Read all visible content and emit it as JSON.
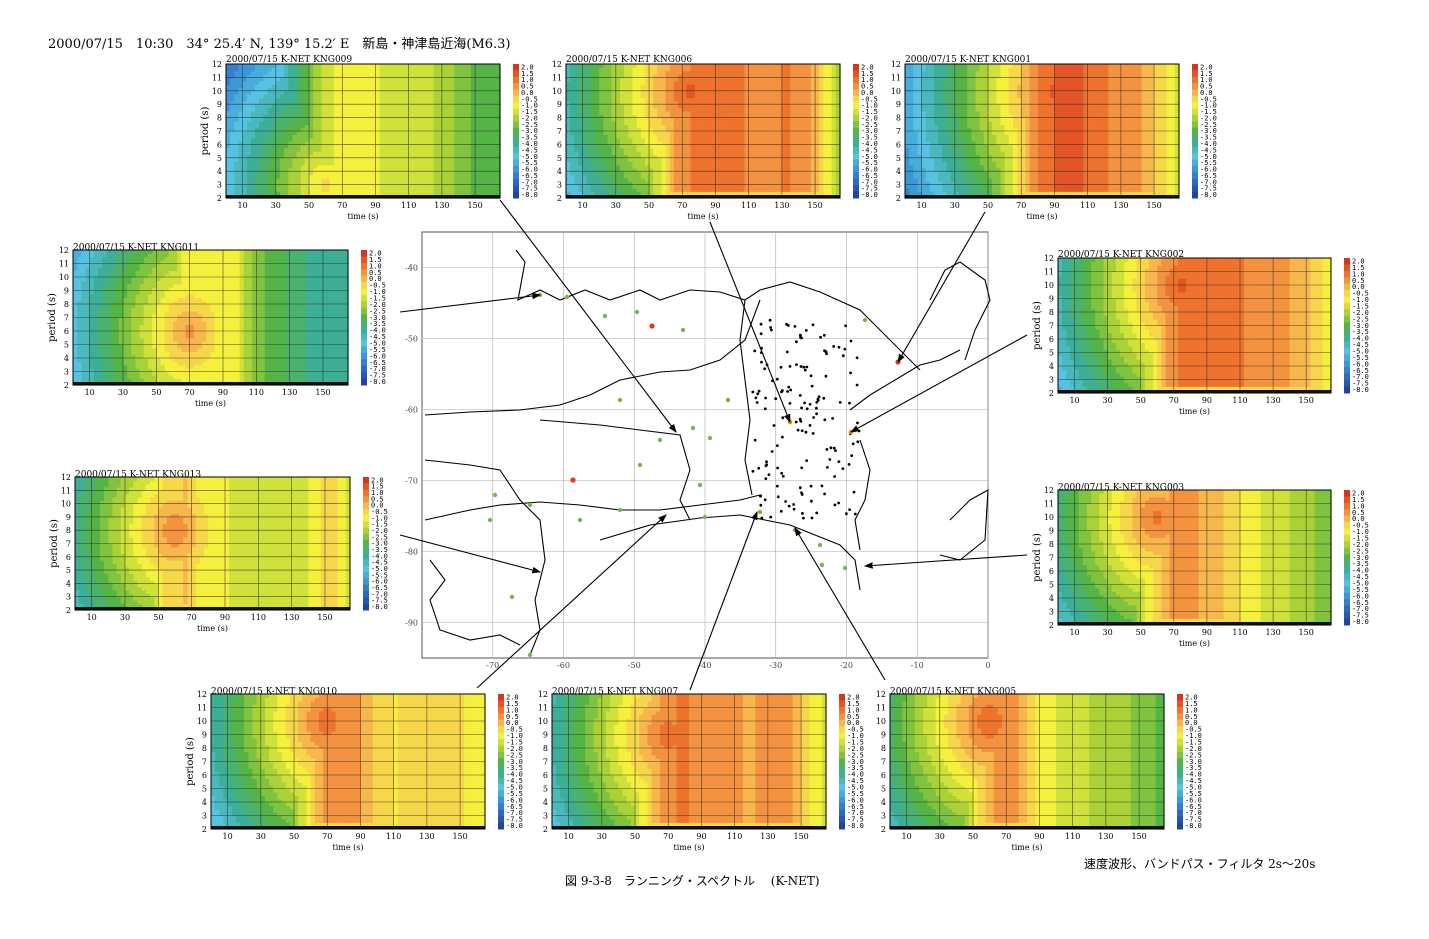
{
  "header": {
    "event": "2000/07/15　10:30　34°  25.4′ N,  139°  15.2′ E　新島・神津島近海(M6.3)"
  },
  "footer": {
    "note": "速度波形、バンドパス・フィルタ 2s～20s",
    "caption": "図 9-3-8　ランニング・スペクトル　 (K-NET)"
  },
  "colors": {
    "arrow": "#000000",
    "station_green": "#7ab648",
    "station_red": "#e03a1a",
    "station_orange": "#e89a20"
  },
  "chart_data": [
    {
      "type": "heatmap",
      "title": "2000/07/15  K-NET  KNG009",
      "xlabel": "time (s)",
      "ylabel": "period (s)",
      "xticks": [
        "10",
        "30",
        "50",
        "70",
        "90",
        "110",
        "130",
        "150"
      ],
      "yticks": [
        "2",
        "3",
        "4",
        "5",
        "6",
        "7",
        "8",
        "9",
        "10",
        "11",
        "12"
      ],
      "xlim": [
        0,
        165
      ],
      "ylim": [
        2,
        12
      ],
      "colorbar": [
        "2.0",
        "1.5",
        "1.0",
        "0.5",
        "0.0",
        "-0.5",
        "-1.0",
        "-1.5",
        "-2.0",
        "-2.5",
        "-3.0",
        "-3.5",
        "-4.0",
        "-4.5",
        "-5.0",
        "-5.5",
        "-6.0",
        "-6.5",
        "-7.0",
        "-7.5",
        "-8.0"
      ],
      "peak": {
        "time": 60,
        "period": 3,
        "level": -0.5
      },
      "profile": [
        -8,
        -7,
        -6,
        -5,
        -3.5,
        -2,
        -1.2,
        -1,
        -1.2,
        -1.3,
        -1.4,
        -1.6,
        -2,
        -2.5,
        -3,
        -3.2
      ]
    },
    {
      "type": "heatmap",
      "title": "2000/07/15  K-NET  KNG006",
      "xlabel": "time (s)",
      "ylabel": "",
      "xticks": [
        "10",
        "30",
        "50",
        "70",
        "90",
        "110",
        "130",
        "150"
      ],
      "yticks": [
        "2",
        "3",
        "4",
        "5",
        "6",
        "7",
        "8",
        "9",
        "10",
        "11",
        "12"
      ],
      "xlim": [
        0,
        165
      ],
      "ylim": [
        2,
        12
      ],
      "colorbar": [
        "2.0",
        "1.5",
        "1.0",
        "0.5",
        "0.0",
        "-0.5",
        "-1.0",
        "-1.5",
        "-2.0",
        "-2.5",
        "-3.0",
        "-3.5",
        "-4.0",
        "-4.5",
        "-5.0",
        "-5.5",
        "-6.0",
        "-6.5",
        "-7.0",
        "-7.5",
        "-8.0"
      ],
      "peak": {
        "time": 75,
        "period": 10,
        "level": 1.5
      },
      "profile": [
        -8,
        -7,
        -6,
        -5,
        -3.5,
        -1.5,
        0.3,
        0.8,
        1.0,
        0.9,
        0.7,
        0.6,
        0.8,
        0.6,
        -0.5,
        -2
      ]
    },
    {
      "type": "heatmap",
      "title": "2000/07/15  K-NET  KNG001",
      "xlabel": "time (s)",
      "ylabel": "",
      "xticks": [
        "10",
        "30",
        "50",
        "70",
        "90",
        "110",
        "130",
        "150"
      ],
      "yticks": [
        "2",
        "3",
        "4",
        "5",
        "6",
        "7",
        "8",
        "9",
        "10",
        "11",
        "12"
      ],
      "xlim": [
        0,
        165
      ],
      "ylim": [
        2,
        12
      ],
      "colorbar": [
        "2.0",
        "1.5",
        "1.0",
        "0.5",
        "0.0",
        "-0.5",
        "-1.0",
        "-1.5",
        "-2.0",
        "-2.5",
        "-3.0",
        "-3.5",
        "-4.0",
        "-4.5",
        "-5.0",
        "-5.5",
        "-6.0",
        "-6.5",
        "-7.0",
        "-7.5",
        "-8.0"
      ],
      "peak": {
        "time": 95,
        "period": 10,
        "level": 1.8
      },
      "profile": [
        -8,
        -7,
        -6,
        -5,
        -4,
        -2.5,
        -1,
        0.5,
        1.2,
        1.4,
        1.2,
        0.8,
        0.5,
        0.3,
        -0.5,
        -1.5
      ]
    },
    {
      "type": "heatmap",
      "title": "2000/07/15  K-NET  KNG011",
      "xlabel": "time (s)",
      "ylabel": "period (s)",
      "xticks": [
        "10",
        "30",
        "50",
        "70",
        "90",
        "110",
        "130",
        "150"
      ],
      "yticks": [
        "2",
        "3",
        "4",
        "5",
        "6",
        "7",
        "8",
        "9",
        "10",
        "11",
        "12"
      ],
      "xlim": [
        0,
        165
      ],
      "ylim": [
        2,
        12
      ],
      "colorbar": [
        "2.0",
        "1.5",
        "1.0",
        "0.5",
        "0.0",
        "-0.5",
        "-1.0",
        "-1.5",
        "-2.0",
        "-2.5",
        "-3.0",
        "-3.5",
        "-4.0",
        "-4.5",
        "-5.0",
        "-5.5",
        "-6.0",
        "-6.5",
        "-7.0",
        "-7.5",
        "-8.0"
      ],
      "peak": {
        "time": 70,
        "period": 6,
        "level": 0.5
      },
      "profile": [
        -8,
        -7,
        -6,
        -5,
        -4,
        -2.5,
        -1.2,
        -0.8,
        -1,
        -1.2,
        -2.5,
        -3,
        -3.5,
        -3.8,
        -4,
        -4
      ]
    },
    {
      "type": "heatmap",
      "title": "2000/07/15  K-NET  KNG002",
      "xlabel": "time (s)",
      "ylabel": "period (s)",
      "xticks": [
        "10",
        "30",
        "50",
        "70",
        "90",
        "110",
        "130",
        "150"
      ],
      "yticks": [
        "2",
        "3",
        "4",
        "5",
        "6",
        "7",
        "8",
        "9",
        "10",
        "11",
        "12"
      ],
      "xlim": [
        0,
        165
      ],
      "ylim": [
        2,
        12
      ],
      "colorbar": [
        "2.0",
        "1.5",
        "1.0",
        "0.5",
        "0.0",
        "-0.5",
        "-1.0",
        "-1.5",
        "-2.0",
        "-2.5",
        "-3.0",
        "-3.5",
        "-4.0",
        "-4.5",
        "-5.0",
        "-5.5",
        "-6.0",
        "-6.5",
        "-7.0",
        "-7.5",
        "-8.0"
      ],
      "peak": {
        "time": 75,
        "period": 10,
        "level": 1.5
      },
      "profile": [
        -8,
        -7,
        -6,
        -5,
        -3.5,
        -1.5,
        0.3,
        1.0,
        1.2,
        1.0,
        0.8,
        0.6,
        0.4,
        0.2,
        -0.3,
        -1
      ]
    },
    {
      "type": "heatmap",
      "title": "2000/07/15  K-NET  KNG013",
      "xlabel": "time (s)",
      "ylabel": "period (s)",
      "xticks": [
        "10",
        "30",
        "50",
        "70",
        "90",
        "110",
        "130",
        "150"
      ],
      "yticks": [
        "2",
        "3",
        "4",
        "5",
        "6",
        "7",
        "8",
        "9",
        "10",
        "11",
        "12"
      ],
      "xlim": [
        0,
        165
      ],
      "ylim": [
        2,
        12
      ],
      "colorbar": [
        "2.0",
        "1.5",
        "1.0",
        "0.5",
        "0.0",
        "-0.5",
        "-1.0",
        "-1.5",
        "-2.0",
        "-2.5",
        "-3.0",
        "-3.5",
        "-4.0",
        "-4.5",
        "-5.0",
        "-5.5",
        "-6.0",
        "-6.5",
        "-7.0",
        "-7.5",
        "-8.0"
      ],
      "peak": {
        "time": 60,
        "period": 8,
        "level": 0.8
      },
      "profile": [
        -8,
        -7,
        -6,
        -4.5,
        -2.5,
        -0.5,
        -0.2,
        -1,
        -1.2,
        -1.3,
        -1.5,
        -1.5,
        -1.4,
        -1.2,
        -0.3,
        -1.5
      ]
    },
    {
      "type": "heatmap",
      "title": "2000/07/15  K-NET  KNG003",
      "xlabel": "time (s)",
      "ylabel": "period (s)",
      "xticks": [
        "10",
        "30",
        "50",
        "70",
        "90",
        "110",
        "130",
        "150"
      ],
      "yticks": [
        "2",
        "3",
        "4",
        "5",
        "6",
        "7",
        "8",
        "9",
        "10",
        "11",
        "12"
      ],
      "xlim": [
        0,
        165
      ],
      "ylim": [
        2,
        12
      ],
      "colorbar": [
        "2.0",
        "1.5",
        "1.0",
        "0.5",
        "0.0",
        "-0.5",
        "-1.0",
        "-1.5",
        "-2.0",
        "-2.5",
        "-3.0",
        "-3.5",
        "-4.0",
        "-4.5",
        "-5.0",
        "-5.5",
        "-6.0",
        "-6.5",
        "-7.0",
        "-7.5",
        "-8.0"
      ],
      "peak": {
        "time": 60,
        "period": 10,
        "level": 1.0
      },
      "profile": [
        -8,
        -7,
        -6,
        -5,
        -3,
        -1,
        0.2,
        0.5,
        0.2,
        -0.2,
        -0.8,
        -1.2,
        -1.5,
        -1.8,
        -2.2,
        -2.5
      ]
    },
    {
      "type": "heatmap",
      "title": "2000/07/15  K-NET  KNG010",
      "xlabel": "time (s)",
      "ylabel": "period (s)",
      "xticks": [
        "10",
        "30",
        "50",
        "70",
        "90",
        "110",
        "130",
        "150"
      ],
      "yticks": [
        "2",
        "3",
        "4",
        "5",
        "6",
        "7",
        "8",
        "9",
        "10",
        "11",
        "12"
      ],
      "xlim": [
        0,
        165
      ],
      "ylim": [
        2,
        12
      ],
      "colorbar": [
        "2.0",
        "1.5",
        "1.0",
        "0.5",
        "0.0",
        "-0.5",
        "-1.0",
        "-1.5",
        "-2.0",
        "-2.5",
        "-3.0",
        "-3.5",
        "-4.0",
        "-4.5",
        "-5.0",
        "-5.5",
        "-6.0",
        "-6.5",
        "-7.0",
        "-7.5",
        "-8.0"
      ],
      "peak": {
        "time": 70,
        "period": 10,
        "level": 1.2
      },
      "profile": [
        -8,
        -7,
        -6,
        -5,
        -3.5,
        -1.5,
        0.2,
        0.6,
        0.3,
        -0.3,
        -0.8,
        -0.5,
        -0.3,
        -0.4,
        -0.8,
        -1.2
      ]
    },
    {
      "type": "heatmap",
      "title": "2000/07/15  K-NET  KNG007",
      "xlabel": "time (s)",
      "ylabel": "",
      "xticks": [
        "10",
        "30",
        "50",
        "70",
        "90",
        "110",
        "130",
        "150"
      ],
      "yticks": [
        "2",
        "3",
        "4",
        "5",
        "6",
        "7",
        "8",
        "9",
        "10",
        "11",
        "12"
      ],
      "xlim": [
        0,
        165
      ],
      "ylim": [
        2,
        12
      ],
      "colorbar": [
        "2.0",
        "1.5",
        "1.0",
        "0.5",
        "0.0",
        "-0.5",
        "-1.0",
        "-1.5",
        "-2.0",
        "-2.5",
        "-3.0",
        "-3.5",
        "-4.0",
        "-4.5",
        "-5.0",
        "-5.5",
        "-6.0",
        "-6.5",
        "-7.0",
        "-7.5",
        "-8.0"
      ],
      "peak": {
        "time": 70,
        "period": 9,
        "level": 1.2
      },
      "profile": [
        -8,
        -7,
        -6,
        -5,
        -3,
        -1,
        0.4,
        0.8,
        0.7,
        0.4,
        0.3,
        0.2,
        0.6,
        0.4,
        -0.6,
        -1.5
      ]
    },
    {
      "type": "heatmap",
      "title": "2000/07/15  K-NET  KNG005",
      "xlabel": "time (s)",
      "ylabel": "",
      "xticks": [
        "10",
        "30",
        "50",
        "70",
        "90",
        "110",
        "130",
        "150"
      ],
      "yticks": [
        "2",
        "3",
        "4",
        "5",
        "6",
        "7",
        "8",
        "9",
        "10",
        "11",
        "12"
      ],
      "xlim": [
        0,
        165
      ],
      "ylim": [
        2,
        12
      ],
      "colorbar": [
        "2.0",
        "1.5",
        "1.0",
        "0.5",
        "0.0",
        "-0.5",
        "-1.0",
        "-1.5",
        "-2.0",
        "-2.5",
        "-3.0",
        "-3.5",
        "-4.0",
        "-4.5",
        "-5.0",
        "-5.5",
        "-6.0",
        "-6.5",
        "-7.0",
        "-7.5",
        "-8.0"
      ],
      "peak": {
        "time": 60,
        "period": 10,
        "level": 1.3
      },
      "profile": [
        -8,
        -7,
        -6,
        -4.5,
        -2.5,
        -0.5,
        0.6,
        0.3,
        -0.8,
        -1.2,
        -1.5,
        -1.8,
        -2,
        -2.2,
        -2.5,
        -3
      ]
    },
    {
      "type": "scatter",
      "title": "",
      "xticks": [
        "-70",
        "-60",
        "-50",
        "-40",
        "-30",
        "-20",
        "-10",
        "0"
      ],
      "yticks": [
        "-40",
        "-50",
        "-60",
        "-70",
        "-80",
        "-90"
      ],
      "xlim": [
        -80,
        0
      ],
      "ylim": [
        -95,
        -35
      ]
    }
  ]
}
